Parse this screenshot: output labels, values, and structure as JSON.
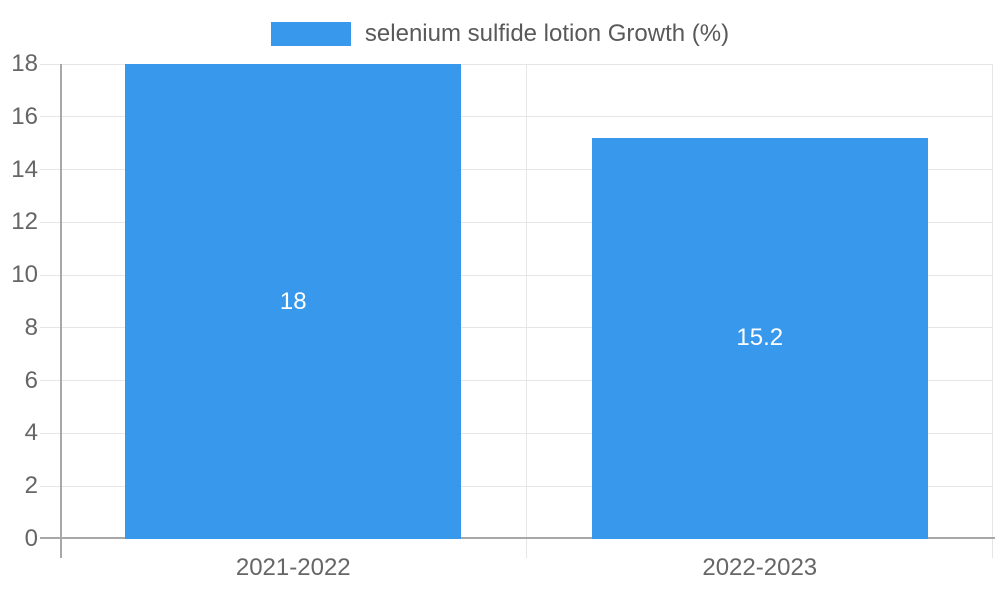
{
  "legend": {
    "label": "selenium sulfide lotion Growth (%)"
  },
  "chart_data": {
    "type": "bar",
    "title": "",
    "categories": [
      "2021-2022",
      "2022-2023"
    ],
    "series": [
      {
        "name": "selenium sulfide lotion Growth (%)",
        "values": [
          18,
          15.2
        ],
        "color": "#3899ec"
      }
    ],
    "data_labels": [
      "18",
      "15.2"
    ],
    "xlabel": "",
    "ylabel": "",
    "ylim": [
      0,
      18
    ],
    "yticks": [
      0,
      2,
      4,
      6,
      8,
      10,
      12,
      14,
      16,
      18
    ],
    "grid": true,
    "legend_position": "top"
  },
  "colors": {
    "bar": "#3899ec",
    "background": "#ffffff",
    "gridline": "#e6e6e6",
    "axis_line": "#a8a8a8",
    "axis_label": "#666666",
    "legend_text": "#595959",
    "data_label": "#ffffff"
  }
}
